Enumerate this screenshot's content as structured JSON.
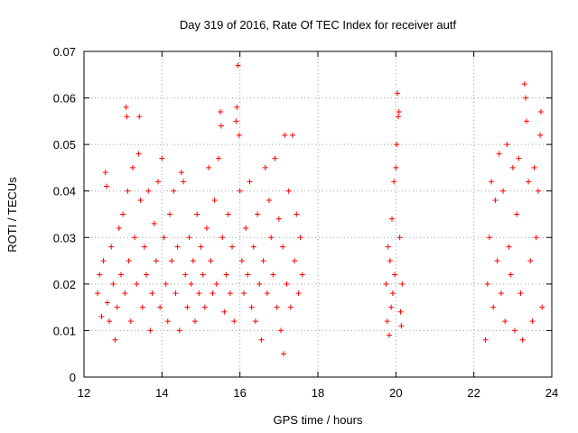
{
  "chart_data": {
    "type": "scatter",
    "title": "Day 319 of 2016, Rate Of TEC Index for receiver autf",
    "xlabel": "GPS time / hours",
    "ylabel": "ROTI / TECUs",
    "xlim": [
      12,
      24
    ],
    "ylim": [
      0,
      0.07
    ],
    "xticks": [
      12,
      14,
      16,
      18,
      20,
      22,
      24
    ],
    "yticks": [
      0,
      0.01,
      0.02,
      0.03,
      0.04,
      0.05,
      0.06,
      0.07
    ],
    "xtick_labels": [
      "12",
      "14",
      "16",
      "18",
      "20",
      "22",
      "24"
    ],
    "ytick_labels": [
      "0",
      "0.01",
      "0.02",
      "0.03",
      "0.04",
      "0.05",
      "0.06",
      "0.07"
    ],
    "grid": true,
    "marker": "+",
    "color": "#ff0000",
    "points": [
      [
        12.35,
        0.018
      ],
      [
        12.4,
        0.022
      ],
      [
        12.45,
        0.013
      ],
      [
        12.5,
        0.025
      ],
      [
        12.55,
        0.044
      ],
      [
        12.58,
        0.041
      ],
      [
        12.6,
        0.016
      ],
      [
        12.65,
        0.012
      ],
      [
        12.7,
        0.028
      ],
      [
        12.75,
        0.02
      ],
      [
        12.8,
        0.008
      ],
      [
        12.85,
        0.015
      ],
      [
        12.9,
        0.032
      ],
      [
        12.95,
        0.022
      ],
      [
        13.0,
        0.035
      ],
      [
        13.05,
        0.018
      ],
      [
        13.08,
        0.058
      ],
      [
        13.1,
        0.056
      ],
      [
        13.12,
        0.04
      ],
      [
        13.15,
        0.025
      ],
      [
        13.2,
        0.012
      ],
      [
        13.25,
        0.045
      ],
      [
        13.3,
        0.03
      ],
      [
        13.35,
        0.02
      ],
      [
        13.4,
        0.048
      ],
      [
        13.42,
        0.056
      ],
      [
        13.45,
        0.038
      ],
      [
        13.5,
        0.015
      ],
      [
        13.55,
        0.028
      ],
      [
        13.6,
        0.022
      ],
      [
        13.65,
        0.04
      ],
      [
        13.7,
        0.01
      ],
      [
        13.75,
        0.018
      ],
      [
        13.8,
        0.033
      ],
      [
        13.85,
        0.025
      ],
      [
        13.9,
        0.042
      ],
      [
        13.95,
        0.015
      ],
      [
        14.0,
        0.047
      ],
      [
        14.05,
        0.03
      ],
      [
        14.1,
        0.02
      ],
      [
        14.15,
        0.012
      ],
      [
        14.2,
        0.035
      ],
      [
        14.25,
        0.025
      ],
      [
        14.3,
        0.04
      ],
      [
        14.35,
        0.018
      ],
      [
        14.4,
        0.028
      ],
      [
        14.45,
        0.01
      ],
      [
        14.5,
        0.044
      ],
      [
        14.55,
        0.042
      ],
      [
        14.6,
        0.022
      ],
      [
        14.65,
        0.015
      ],
      [
        14.7,
        0.03
      ],
      [
        14.75,
        0.02
      ],
      [
        14.8,
        0.025
      ],
      [
        14.85,
        0.012
      ],
      [
        14.9,
        0.035
      ],
      [
        14.95,
        0.018
      ],
      [
        15.0,
        0.028
      ],
      [
        15.05,
        0.022
      ],
      [
        15.1,
        0.015
      ],
      [
        15.15,
        0.032
      ],
      [
        15.2,
        0.045
      ],
      [
        15.25,
        0.025
      ],
      [
        15.3,
        0.018
      ],
      [
        15.35,
        0.038
      ],
      [
        15.4,
        0.02
      ],
      [
        15.45,
        0.047
      ],
      [
        15.5,
        0.057
      ],
      [
        15.52,
        0.054
      ],
      [
        15.55,
        0.03
      ],
      [
        15.6,
        0.014
      ],
      [
        15.65,
        0.022
      ],
      [
        15.7,
        0.035
      ],
      [
        15.75,
        0.018
      ],
      [
        15.8,
        0.028
      ],
      [
        15.85,
        0.012
      ],
      [
        15.9,
        0.055
      ],
      [
        15.92,
        0.058
      ],
      [
        15.95,
        0.067
      ],
      [
        15.98,
        0.052
      ],
      [
        16.0,
        0.04
      ],
      [
        16.05,
        0.025
      ],
      [
        16.1,
        0.018
      ],
      [
        16.15,
        0.032
      ],
      [
        16.2,
        0.022
      ],
      [
        16.25,
        0.042
      ],
      [
        16.3,
        0.015
      ],
      [
        16.35,
        0.028
      ],
      [
        16.4,
        0.012
      ],
      [
        16.45,
        0.035
      ],
      [
        16.5,
        0.02
      ],
      [
        16.55,
        0.008
      ],
      [
        16.6,
        0.025
      ],
      [
        16.65,
        0.045
      ],
      [
        16.7,
        0.018
      ],
      [
        16.75,
        0.038
      ],
      [
        16.8,
        0.03
      ],
      [
        16.85,
        0.022
      ],
      [
        16.9,
        0.047
      ],
      [
        16.95,
        0.015
      ],
      [
        17.0,
        0.034
      ],
      [
        17.05,
        0.01
      ],
      [
        17.1,
        0.028
      ],
      [
        17.12,
        0.005
      ],
      [
        17.15,
        0.052
      ],
      [
        17.2,
        0.02
      ],
      [
        17.25,
        0.04
      ],
      [
        17.3,
        0.015
      ],
      [
        17.35,
        0.052
      ],
      [
        17.4,
        0.025
      ],
      [
        17.45,
        0.035
      ],
      [
        17.5,
        0.018
      ],
      [
        17.55,
        0.03
      ],
      [
        17.6,
        0.022
      ],
      [
        19.75,
        0.02
      ],
      [
        19.78,
        0.012
      ],
      [
        19.8,
        0.028
      ],
      [
        19.83,
        0.009
      ],
      [
        19.85,
        0.025
      ],
      [
        19.88,
        0.015
      ],
      [
        19.9,
        0.034
      ],
      [
        19.92,
        0.018
      ],
      [
        19.95,
        0.042
      ],
      [
        19.97,
        0.022
      ],
      [
        20.0,
        0.045
      ],
      [
        20.02,
        0.05
      ],
      [
        20.04,
        0.061
      ],
      [
        20.06,
        0.056
      ],
      [
        20.08,
        0.057
      ],
      [
        20.1,
        0.03
      ],
      [
        20.12,
        0.014
      ],
      [
        20.14,
        0.011
      ],
      [
        20.16,
        0.02
      ],
      [
        22.3,
        0.008
      ],
      [
        22.35,
        0.02
      ],
      [
        22.4,
        0.03
      ],
      [
        22.45,
        0.042
      ],
      [
        22.5,
        0.015
      ],
      [
        22.55,
        0.038
      ],
      [
        22.6,
        0.025
      ],
      [
        22.65,
        0.048
      ],
      [
        22.7,
        0.018
      ],
      [
        22.75,
        0.04
      ],
      [
        22.8,
        0.012
      ],
      [
        22.85,
        0.05
      ],
      [
        22.9,
        0.028
      ],
      [
        22.95,
        0.022
      ],
      [
        23.0,
        0.045
      ],
      [
        23.05,
        0.01
      ],
      [
        23.1,
        0.035
      ],
      [
        23.15,
        0.047
      ],
      [
        23.2,
        0.018
      ],
      [
        23.25,
        0.008
      ],
      [
        23.3,
        0.063
      ],
      [
        23.33,
        0.06
      ],
      [
        23.35,
        0.055
      ],
      [
        23.4,
        0.042
      ],
      [
        23.45,
        0.025
      ],
      [
        23.5,
        0.012
      ],
      [
        23.55,
        0.045
      ],
      [
        23.6,
        0.03
      ],
      [
        23.65,
        0.04
      ],
      [
        23.7,
        0.052
      ],
      [
        23.72,
        0.057
      ],
      [
        23.75,
        0.015
      ]
    ]
  }
}
